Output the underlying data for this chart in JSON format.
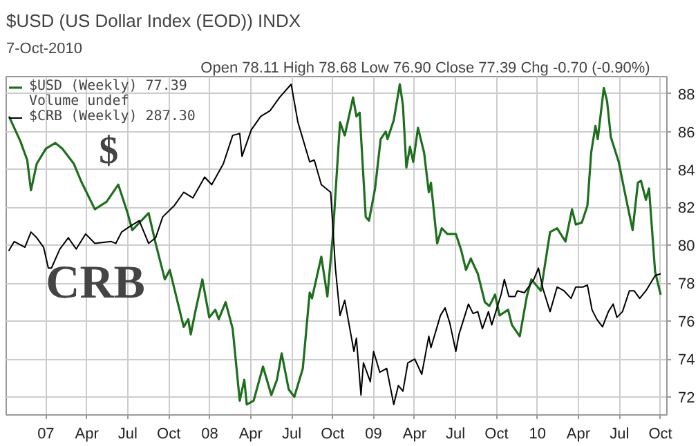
{
  "chart_data": {
    "type": "line",
    "title": "$USD (US Dollar Index (EOD)) INDX",
    "subtitle": "7-Oct-2010",
    "annotations": [
      "Open 78.11  High 78.68  Low 76.90  Close 77.39  Chg -0.70 (-0.90%)",
      "Volume undef",
      "$",
      "CRB"
    ],
    "xlim": [
      2006.758,
      2010.79
    ],
    "xticks": [
      {
        "value": 2007,
        "label": "07"
      },
      {
        "value": 2007.25,
        "label": "Apr"
      },
      {
        "value": 2007.5,
        "label": "Jul"
      },
      {
        "value": 2007.75,
        "label": "Oct"
      },
      {
        "value": 2008,
        "label": "08"
      },
      {
        "value": 2008.25,
        "label": "Apr"
      },
      {
        "value": 2008.5,
        "label": "Jul"
      },
      {
        "value": 2008.75,
        "label": "Oct"
      },
      {
        "value": 2009,
        "label": "09"
      },
      {
        "value": 2009.25,
        "label": "Apr"
      },
      {
        "value": 2009.5,
        "label": "Jul"
      },
      {
        "value": 2009.75,
        "label": "Oct"
      },
      {
        "value": 2010,
        "label": "10"
      },
      {
        "value": 2010.25,
        "label": "Apr"
      },
      {
        "value": 2010.5,
        "label": "Jul"
      },
      {
        "value": 2010.75,
        "label": "Oct"
      }
    ],
    "ylim": [
      71.05,
      88.9
    ],
    "yticks": [
      72,
      74,
      76,
      78,
      80,
      82,
      84,
      86,
      88
    ],
    "grid": true,
    "legend": "top left",
    "series": [
      {
        "name": "$USD (Weekly) 77.39",
        "color": "#1e6e1e",
        "x": [
          2006.775,
          2006.844,
          2006.886,
          2006.909,
          2006.944,
          2007.0,
          2007.057,
          2007.1,
          2007.171,
          2007.214,
          2007.299,
          2007.371,
          2007.442,
          2007.499,
          2007.527,
          2007.627,
          2007.67,
          2007.726,
          2007.756,
          2007.841,
          2007.869,
          2007.884,
          2007.912,
          2007.955,
          2007.997,
          2008.034,
          2008.055,
          2008.097,
          2008.14,
          2008.183,
          2008.211,
          2008.226,
          2008.268,
          2008.325,
          2008.376,
          2008.41,
          2008.439,
          2008.482,
          2008.516,
          2008.568,
          2008.61,
          2008.624,
          2008.681,
          2008.718,
          2008.752,
          2008.795,
          2008.824,
          2008.875,
          2008.895,
          2008.915,
          2008.952,
          2008.972,
          2009.009,
          2009.043,
          2009.074,
          2009.085,
          2009.123,
          2009.16,
          2009.179,
          2009.2,
          2009.222,
          2009.242,
          2009.271,
          2009.308,
          2009.337,
          2009.35,
          2009.388,
          2009.416,
          2009.45,
          2009.502,
          2009.536,
          2009.564,
          2009.593,
          2009.636,
          2009.679,
          2009.707,
          2009.741,
          2009.769,
          2009.821,
          2009.844,
          2009.892,
          2009.935,
          2009.963,
          2010.021,
          2010.077,
          2010.12,
          2010.171,
          2010.211,
          2010.234,
          2010.271,
          2010.305,
          2010.328,
          2010.354,
          2010.368,
          2010.405,
          2010.425,
          2010.448,
          2010.496,
          2010.533,
          2010.581,
          2010.613,
          2010.632,
          2010.662,
          2010.681,
          2010.718,
          2010.752
        ],
        "values": [
          86.8,
          85.5,
          84.5,
          82.9,
          84.3,
          85.1,
          85.4,
          85.1,
          84.3,
          83.4,
          81.9,
          82.3,
          83.2,
          81.7,
          80.8,
          81.7,
          80.1,
          78.2,
          78.7,
          75.7,
          76.1,
          75.3,
          76.5,
          78.2,
          76.2,
          76.6,
          76.1,
          77.0,
          75.6,
          71.8,
          72.9,
          71.6,
          71.8,
          73.6,
          72.1,
          72.9,
          74.3,
          72.4,
          72.0,
          73.5,
          77.5,
          77.2,
          79.4,
          77.3,
          80.6,
          86.5,
          85.8,
          87.8,
          86.8,
          87.0,
          81.5,
          81.3,
          83.0,
          85.6,
          86.0,
          85.6,
          86.6,
          88.5,
          87.4,
          84.1,
          85.2,
          84.4,
          86.2,
          84.9,
          82.8,
          83.3,
          80.1,
          80.9,
          80.6,
          80.6,
          79.7,
          78.7,
          79.3,
          78.5,
          77.0,
          76.8,
          77.4,
          76.3,
          76.6,
          75.8,
          75.2,
          77.3,
          78.2,
          77.6,
          80.7,
          80.9,
          80.2,
          81.9,
          81.1,
          81.2,
          82.1,
          84.9,
          86.3,
          85.6,
          88.3,
          87.6,
          85.7,
          84.4,
          82.8,
          80.8,
          83.3,
          83.4,
          82.4,
          83.0,
          78.6,
          77.39
        ]
      },
      {
        "name": "$CRB (Weekly) 287.30",
        "color": "#000000",
        "x": [
          2006.773,
          2006.807,
          2006.872,
          2006.909,
          2006.944,
          2006.986,
          2007.015,
          2007.034,
          2007.085,
          2007.137,
          2007.185,
          2007.243,
          2007.299,
          2007.399,
          2007.427,
          2007.462,
          2007.513,
          2007.57,
          2007.627,
          2007.67,
          2007.713,
          2007.784,
          2007.841,
          2007.897,
          2007.969,
          2008.012,
          2008.083,
          2008.14,
          2008.183,
          2008.197,
          2008.254,
          2008.311,
          2008.368,
          2008.426,
          2008.497,
          2008.538,
          2008.61,
          2008.638,
          2008.681,
          2008.738,
          2008.767,
          2008.795,
          2008.824,
          2008.88,
          2008.895,
          2008.923,
          2008.938,
          2008.98,
          2009.0,
          2009.038,
          2009.08,
          2009.123,
          2009.151,
          2009.179,
          2009.209,
          2009.251,
          2009.294,
          2009.337,
          2009.35,
          2009.408,
          2009.436,
          2009.465,
          2009.502,
          2009.521,
          2009.579,
          2009.607,
          2009.636,
          2009.664,
          2009.701,
          2009.721,
          2009.778,
          2009.798,
          2009.826,
          2009.863,
          2009.878,
          2009.921,
          2009.978,
          2010.006,
          2010.034,
          2010.077,
          2010.12,
          2010.162,
          2010.205,
          2010.234,
          2010.277,
          2010.305,
          2010.333,
          2010.362,
          2010.397,
          2010.433,
          2010.462,
          2010.485,
          2010.519,
          2010.561,
          2010.59,
          2010.624,
          2010.662,
          2010.718,
          2010.752
        ],
        "values": [
          79.7,
          80.2,
          79.9,
          80.7,
          80.4,
          79.9,
          78.8,
          78.8,
          79.8,
          80.4,
          79.8,
          80.6,
          80.1,
          80.2,
          80.1,
          80.7,
          81.0,
          81.3,
          80.1,
          80.4,
          81.5,
          82.1,
          82.8,
          82.5,
          83.6,
          83.2,
          84.3,
          85.8,
          85.9,
          84.7,
          86.1,
          86.8,
          87.1,
          87.8,
          88.5,
          86.5,
          84.4,
          84.5,
          83.2,
          82.8,
          78.8,
          76.3,
          77.1,
          74.4,
          75.1,
          72.1,
          73.8,
          72.8,
          74.4,
          73.3,
          73.5,
          71.6,
          72.6,
          72.3,
          73.8,
          74.0,
          73.2,
          75.2,
          74.6,
          76.3,
          76.7,
          75.9,
          74.4,
          75.3,
          76.9,
          76.4,
          76.5,
          75.6,
          76.5,
          75.8,
          77.4,
          78.2,
          77.3,
          77.3,
          77.6,
          77.5,
          78.2,
          78.8,
          77.7,
          76.5,
          77.8,
          77.6,
          77.2,
          77.8,
          77.8,
          77.9,
          76.6,
          76.1,
          75.7,
          76.5,
          76.9,
          76.2,
          76.5,
          77.6,
          77.6,
          77.2,
          77.6,
          78.4,
          78.5
        ]
      }
    ]
  }
}
